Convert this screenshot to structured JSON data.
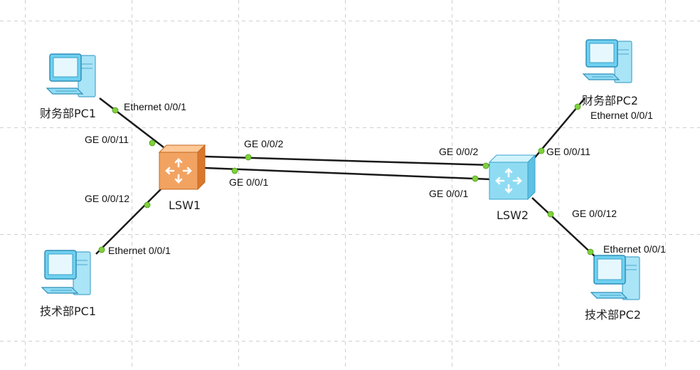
{
  "diagram": {
    "devices": {
      "pc_fin1": {
        "label": "财务部PC1"
      },
      "pc_fin2": {
        "label": "财务部PC2"
      },
      "pc_tech1": {
        "label": "技术部PC1"
      },
      "pc_tech2": {
        "label": "技术部PC2"
      },
      "lsw1": {
        "label": "LSW1"
      },
      "lsw2": {
        "label": "LSW2"
      }
    },
    "ports": {
      "fin1_eth": "Ethernet 0/0/1",
      "lsw1_ge11": "GE 0/0/11",
      "lsw1_ge12": "GE 0/0/12",
      "tech1_eth": "Ethernet 0/0/1",
      "lsw1_ge2": "GE 0/0/2",
      "lsw1_ge1": "GE 0/0/1",
      "lsw2_ge2": "GE 0/0/2",
      "lsw2_ge1": "GE 0/0/1",
      "fin2_eth": "Ethernet 0/0/1",
      "lsw2_ge11": "GE 0/0/11",
      "lsw2_ge12": "GE 0/0/12",
      "tech2_eth": "Ethernet 0/0/1"
    },
    "colors": {
      "link": "#1a1a1a",
      "port_dot": "#7ed23a",
      "lsw1_body": "#f2a361",
      "lsw2_body": "#8fdcf2",
      "pc_body": "#6fd0f0",
      "grid": "#cfcfcf"
    }
  }
}
